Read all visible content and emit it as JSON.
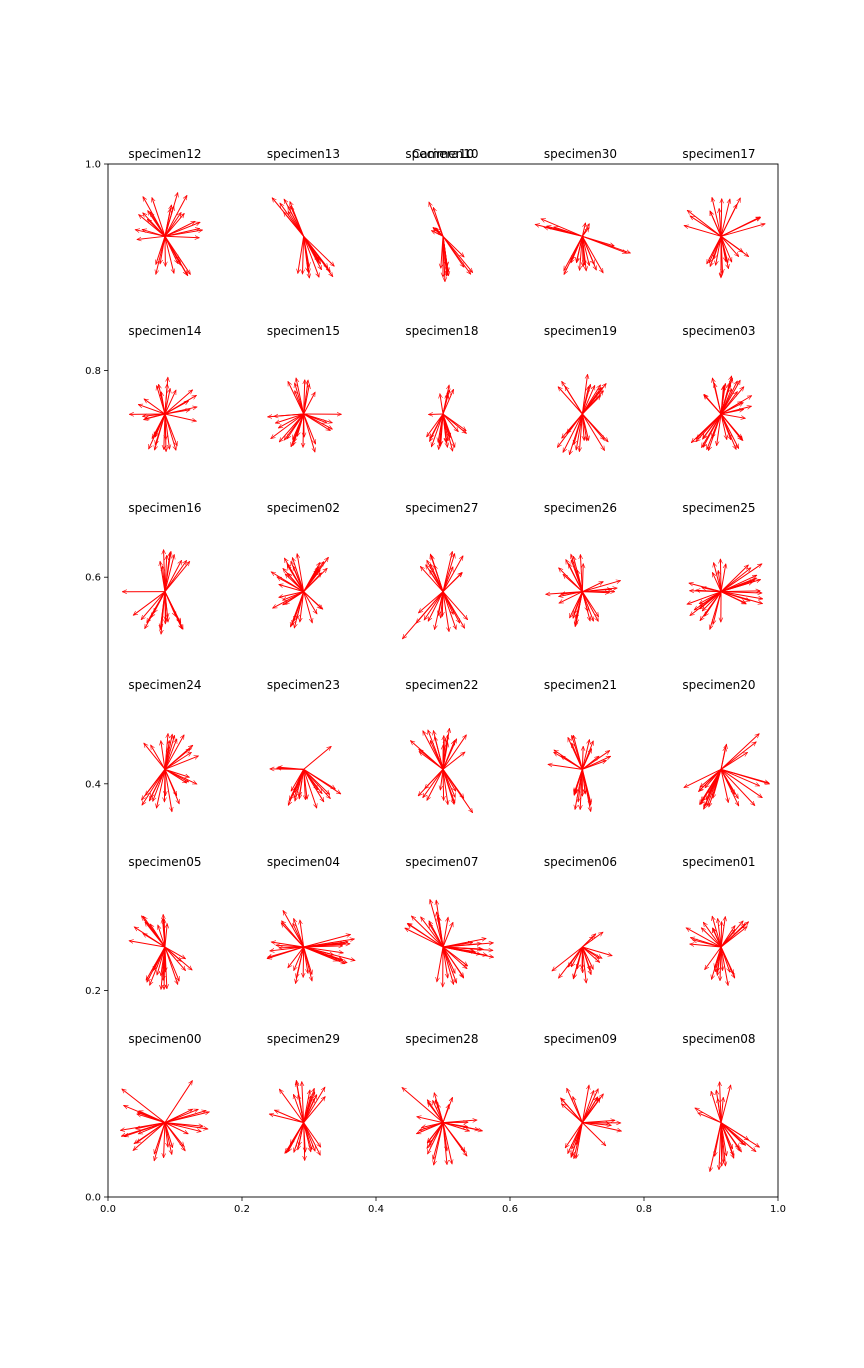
{
  "chart_data": {
    "type": "quiver",
    "overlay_title": "Camera10",
    "xlim": [
      0,
      1
    ],
    "ylim": [
      0,
      1
    ],
    "x_ticks": [
      "0.0",
      "0.2",
      "0.4",
      "0.6",
      "0.8",
      "1.0"
    ],
    "y_ticks": [
      "0.0",
      "0.2",
      "0.4",
      "0.6",
      "0.8",
      "1.0"
    ],
    "grid": false,
    "arrow_color": "#ff0000",
    "panels": [
      {
        "label": "specimen12",
        "origin": [
          0.085,
          0.93
        ],
        "fan": [
          {
            "dir": 90,
            "spread": 35,
            "len": 0.075,
            "n": 10
          },
          {
            "dir": 270,
            "spread": 35,
            "len": 0.07,
            "n": 12
          },
          {
            "dir": 20,
            "spread": 30,
            "len": 0.065,
            "n": 6
          },
          {
            "dir": 160,
            "spread": 30,
            "len": 0.06,
            "n": 6
          }
        ]
      },
      {
        "label": "specimen13",
        "origin": [
          0.292,
          0.93
        ],
        "fan": [
          {
            "dir": 120,
            "spread": 12,
            "len": 0.075,
            "n": 8
          },
          {
            "dir": 290,
            "spread": 30,
            "len": 0.075,
            "n": 16
          }
        ]
      },
      {
        "label": "specimen10",
        "origin": [
          0.5,
          0.93
        ],
        "fan": [
          {
            "dir": 115,
            "spread": 8,
            "len": 0.075,
            "n": 2
          },
          {
            "dir": 145,
            "spread": 15,
            "len": 0.022,
            "n": 5
          },
          {
            "dir": 270,
            "spread": 10,
            "len": 0.07,
            "n": 10
          },
          {
            "dir": 310,
            "spread": 8,
            "len": 0.08,
            "n": 4
          }
        ]
      },
      {
        "label": "specimen30",
        "origin": [
          0.708,
          0.93
        ],
        "fan": [
          {
            "dir": 270,
            "spread": 30,
            "len": 0.065,
            "n": 14
          },
          {
            "dir": 155,
            "spread": 15,
            "len": 0.08,
            "n": 5
          },
          {
            "dir": 340,
            "spread": 12,
            "len": 0.08,
            "n": 3
          },
          {
            "dir": 60,
            "spread": 20,
            "len": 0.025,
            "n": 3
          }
        ]
      },
      {
        "label": "specimen17",
        "origin": [
          0.915,
          0.93
        ],
        "fan": [
          {
            "dir": 90,
            "spread": 30,
            "len": 0.065,
            "n": 8
          },
          {
            "dir": 270,
            "spread": 30,
            "len": 0.065,
            "n": 12
          },
          {
            "dir": 30,
            "spread": 15,
            "len": 0.07,
            "n": 3
          },
          {
            "dir": 150,
            "spread": 15,
            "len": 0.07,
            "n": 3
          },
          {
            "dir": 320,
            "spread": 15,
            "len": 0.07,
            "n": 3
          }
        ]
      },
      {
        "label": "specimen14",
        "origin": [
          0.085,
          0.758
        ],
        "fan": [
          {
            "dir": 90,
            "spread": 25,
            "len": 0.06,
            "n": 7
          },
          {
            "dir": 270,
            "spread": 30,
            "len": 0.065,
            "n": 12
          },
          {
            "dir": 15,
            "spread": 30,
            "len": 0.055,
            "n": 6
          },
          {
            "dir": 170,
            "spread": 30,
            "len": 0.055,
            "n": 6
          }
        ]
      },
      {
        "label": "specimen15",
        "origin": [
          0.292,
          0.758
        ],
        "fan": [
          {
            "dir": 85,
            "spread": 35,
            "len": 0.06,
            "n": 8
          },
          {
            "dir": 260,
            "spread": 35,
            "len": 0.06,
            "n": 12
          },
          {
            "dir": 200,
            "spread": 20,
            "len": 0.065,
            "n": 5
          },
          {
            "dir": 340,
            "spread": 20,
            "len": 0.06,
            "n": 5
          }
        ]
      },
      {
        "label": "specimen18",
        "origin": [
          0.5,
          0.758
        ],
        "fan": [
          {
            "dir": 90,
            "spread": 25,
            "len": 0.045,
            "n": 6
          },
          {
            "dir": 270,
            "spread": 20,
            "len": 0.065,
            "n": 12
          },
          {
            "dir": 230,
            "spread": 15,
            "len": 0.05,
            "n": 3
          },
          {
            "dir": 310,
            "spread": 15,
            "len": 0.06,
            "n": 3
          },
          {
            "dir": 180,
            "spread": 5,
            "len": 0.03,
            "n": 1
          }
        ]
      },
      {
        "label": "specimen19",
        "origin": [
          0.708,
          0.758
        ],
        "fan": [
          {
            "dir": 90,
            "spread": 45,
            "len": 0.065,
            "n": 14
          },
          {
            "dir": 270,
            "spread": 45,
            "len": 0.065,
            "n": 14
          }
        ]
      },
      {
        "label": "specimen03",
        "origin": [
          0.915,
          0.758
        ],
        "fan": [
          {
            "dir": 90,
            "spread": 45,
            "len": 0.06,
            "n": 16
          },
          {
            "dir": 270,
            "spread": 45,
            "len": 0.06,
            "n": 16
          },
          {
            "dir": 220,
            "spread": 10,
            "len": 0.085,
            "n": 2
          },
          {
            "dir": 10,
            "spread": 25,
            "len": 0.055,
            "n": 6
          }
        ]
      },
      {
        "label": "specimen16",
        "origin": [
          0.085,
          0.586
        ],
        "fan": [
          {
            "dir": 75,
            "spread": 25,
            "len": 0.065,
            "n": 10
          },
          {
            "dir": 255,
            "spread": 45,
            "len": 0.065,
            "n": 18
          },
          {
            "dir": 185,
            "spread": 5,
            "len": 0.085,
            "n": 1
          }
        ]
      },
      {
        "label": "specimen02",
        "origin": [
          0.292,
          0.586
        ],
        "fan": [
          {
            "dir": 130,
            "spread": 35,
            "len": 0.06,
            "n": 14
          },
          {
            "dir": 60,
            "spread": 25,
            "len": 0.07,
            "n": 8
          },
          {
            "dir": 280,
            "spread": 40,
            "len": 0.06,
            "n": 10
          },
          {
            "dir": 200,
            "spread": 20,
            "len": 0.06,
            "n": 5
          }
        ]
      },
      {
        "label": "specimen27",
        "origin": [
          0.5,
          0.586
        ],
        "fan": [
          {
            "dir": 90,
            "spread": 50,
            "len": 0.065,
            "n": 14
          },
          {
            "dir": 270,
            "spread": 50,
            "len": 0.065,
            "n": 14
          },
          {
            "dir": 230,
            "spread": 5,
            "len": 0.1,
            "n": 1
          }
        ]
      },
      {
        "label": "specimen26",
        "origin": [
          0.708,
          0.586
        ],
        "fan": [
          {
            "dir": 110,
            "spread": 35,
            "len": 0.06,
            "n": 10
          },
          {
            "dir": 270,
            "spread": 35,
            "len": 0.055,
            "n": 12
          },
          {
            "dir": 10,
            "spread": 20,
            "len": 0.06,
            "n": 6
          },
          {
            "dir": 190,
            "spread": 20,
            "len": 0.055,
            "n": 4
          }
        ]
      },
      {
        "label": "specimen25",
        "origin": [
          0.915,
          0.586
        ],
        "fan": [
          {
            "dir": 100,
            "spread": 20,
            "len": 0.055,
            "n": 5
          },
          {
            "dir": 20,
            "spread": 25,
            "len": 0.08,
            "n": 10
          },
          {
            "dir": 240,
            "spread": 40,
            "len": 0.06,
            "n": 12
          },
          {
            "dir": 340,
            "spread": 15,
            "len": 0.07,
            "n": 5
          },
          {
            "dir": 175,
            "spread": 15,
            "len": 0.05,
            "n": 4
          }
        ]
      },
      {
        "label": "specimen24",
        "origin": [
          0.085,
          0.414
        ],
        "fan": [
          {
            "dir": 90,
            "spread": 40,
            "len": 0.06,
            "n": 10
          },
          {
            "dir": 270,
            "spread": 40,
            "len": 0.065,
            "n": 12
          },
          {
            "dir": 30,
            "spread": 15,
            "len": 0.065,
            "n": 4
          },
          {
            "dir": 330,
            "spread": 15,
            "len": 0.06,
            "n": 4
          }
        ]
      },
      {
        "label": "specimen23",
        "origin": [
          0.292,
          0.414
        ],
        "fan": [
          {
            "dir": 40,
            "spread": 5,
            "len": 0.095,
            "n": 1
          },
          {
            "dir": 270,
            "spread": 40,
            "len": 0.065,
            "n": 14
          },
          {
            "dir": 175,
            "spread": 10,
            "len": 0.07,
            "n": 3
          },
          {
            "dir": 315,
            "spread": 15,
            "len": 0.07,
            "n": 4
          }
        ]
      },
      {
        "label": "specimen22",
        "origin": [
          0.5,
          0.414
        ],
        "fan": [
          {
            "dir": 90,
            "spread": 55,
            "len": 0.065,
            "n": 18
          },
          {
            "dir": 270,
            "spread": 45,
            "len": 0.055,
            "n": 12
          },
          {
            "dir": 300,
            "spread": 5,
            "len": 0.08,
            "n": 1
          }
        ]
      },
      {
        "label": "specimen21",
        "origin": [
          0.708,
          0.414
        ],
        "fan": [
          {
            "dir": 90,
            "spread": 25,
            "len": 0.055,
            "n": 8
          },
          {
            "dir": 265,
            "spread": 25,
            "len": 0.065,
            "n": 14
          },
          {
            "dir": 25,
            "spread": 15,
            "len": 0.05,
            "n": 4
          },
          {
            "dir": 160,
            "spread": 15,
            "len": 0.055,
            "n": 4
          }
        ]
      },
      {
        "label": "specimen20",
        "origin": [
          0.915,
          0.414
        ],
        "fan": [
          {
            "dir": 80,
            "spread": 5,
            "len": 0.045,
            "n": 2
          },
          {
            "dir": 35,
            "spread": 10,
            "len": 0.08,
            "n": 3
          },
          {
            "dir": 235,
            "spread": 30,
            "len": 0.065,
            "n": 16
          },
          {
            "dir": 330,
            "spread": 20,
            "len": 0.08,
            "n": 5
          },
          {
            "dir": 290,
            "spread": 15,
            "len": 0.065,
            "n": 4
          }
        ]
      },
      {
        "label": "specimen05",
        "origin": [
          0.085,
          0.242
        ],
        "fan": [
          {
            "dir": 100,
            "spread": 30,
            "len": 0.06,
            "n": 9
          },
          {
            "dir": 260,
            "spread": 40,
            "len": 0.065,
            "n": 14
          },
          {
            "dir": 160,
            "spread": 15,
            "len": 0.055,
            "n": 3
          },
          {
            "dir": 330,
            "spread": 20,
            "len": 0.055,
            "n": 4
          }
        ]
      },
      {
        "label": "specimen04",
        "origin": [
          0.292,
          0.242
        ],
        "fan": [
          {
            "dir": 120,
            "spread": 25,
            "len": 0.07,
            "n": 6
          },
          {
            "dir": 180,
            "spread": 20,
            "len": 0.065,
            "n": 6
          },
          {
            "dir": 260,
            "spread": 30,
            "len": 0.06,
            "n": 8
          },
          {
            "dir": 355,
            "spread": 20,
            "len": 0.08,
            "n": 14
          }
        ]
      },
      {
        "label": "specimen07",
        "origin": [
          0.5,
          0.242
        ],
        "fan": [
          {
            "dir": 130,
            "spread": 35,
            "len": 0.075,
            "n": 12
          },
          {
            "dir": 0,
            "spread": 12,
            "len": 0.08,
            "n": 12
          },
          {
            "dir": 290,
            "spread": 40,
            "len": 0.065,
            "n": 10
          },
          {
            "dir": 75,
            "spread": 10,
            "len": 0.065,
            "n": 2
          }
        ]
      },
      {
        "label": "specimen06",
        "origin": [
          0.708,
          0.242
        ],
        "fan": [
          {
            "dir": 40,
            "spread": 10,
            "len": 0.04,
            "n": 3
          },
          {
            "dir": 270,
            "spread": 30,
            "len": 0.055,
            "n": 10
          },
          {
            "dir": 225,
            "spread": 10,
            "len": 0.06,
            "n": 3
          },
          {
            "dir": 330,
            "spread": 15,
            "len": 0.05,
            "n": 4
          }
        ]
      },
      {
        "label": "specimen01",
        "origin": [
          0.915,
          0.242
        ],
        "fan": [
          {
            "dir": 110,
            "spread": 30,
            "len": 0.055,
            "n": 8
          },
          {
            "dir": 40,
            "spread": 20,
            "len": 0.06,
            "n": 6
          },
          {
            "dir": 260,
            "spread": 35,
            "len": 0.06,
            "n": 12
          },
          {
            "dir": 165,
            "spread": 15,
            "len": 0.06,
            "n": 4
          }
        ]
      },
      {
        "label": "specimen00",
        "origin": [
          0.085,
          0.072
        ],
        "fan": [
          {
            "dir": 145,
            "spread": 5,
            "len": 0.09,
            "n": 1
          },
          {
            "dir": 55,
            "spread": 5,
            "len": 0.075,
            "n": 1
          },
          {
            "dir": 190,
            "spread": 35,
            "len": 0.07,
            "n": 12
          },
          {
            "dir": 0,
            "spread": 30,
            "len": 0.07,
            "n": 8
          },
          {
            "dir": 280,
            "spread": 30,
            "len": 0.06,
            "n": 8
          }
        ]
      },
      {
        "label": "specimen29",
        "origin": [
          0.292,
          0.072
        ],
        "fan": [
          {
            "dir": 90,
            "spread": 40,
            "len": 0.065,
            "n": 14
          },
          {
            "dir": 270,
            "spread": 40,
            "len": 0.06,
            "n": 14
          },
          {
            "dir": 160,
            "spread": 10,
            "len": 0.07,
            "n": 2
          }
        ]
      },
      {
        "label": "specimen28",
        "origin": [
          0.5,
          0.072
        ],
        "fan": [
          {
            "dir": 90,
            "spread": 40,
            "len": 0.05,
            "n": 8
          },
          {
            "dir": 270,
            "spread": 40,
            "len": 0.065,
            "n": 12
          },
          {
            "dir": 135,
            "spread": 5,
            "len": 0.09,
            "n": 1
          },
          {
            "dir": 0,
            "spread": 20,
            "len": 0.065,
            "n": 6
          },
          {
            "dir": 185,
            "spread": 20,
            "len": 0.05,
            "n": 4
          }
        ]
      },
      {
        "label": "specimen09",
        "origin": [
          0.708,
          0.072
        ],
        "fan": [
          {
            "dir": 60,
            "spread": 25,
            "len": 0.07,
            "n": 8
          },
          {
            "dir": 130,
            "spread": 20,
            "len": 0.06,
            "n": 5
          },
          {
            "dir": 250,
            "spread": 35,
            "len": 0.06,
            "n": 8
          },
          {
            "dir": 340,
            "spread": 25,
            "len": 0.065,
            "n": 6
          }
        ]
      },
      {
        "label": "specimen08",
        "origin": [
          0.915,
          0.072
        ],
        "fan": [
          {
            "dir": 90,
            "spread": 25,
            "len": 0.065,
            "n": 6
          },
          {
            "dir": 290,
            "spread": 40,
            "len": 0.075,
            "n": 18
          },
          {
            "dir": 150,
            "spread": 10,
            "len": 0.045,
            "n": 2
          }
        ]
      }
    ]
  }
}
